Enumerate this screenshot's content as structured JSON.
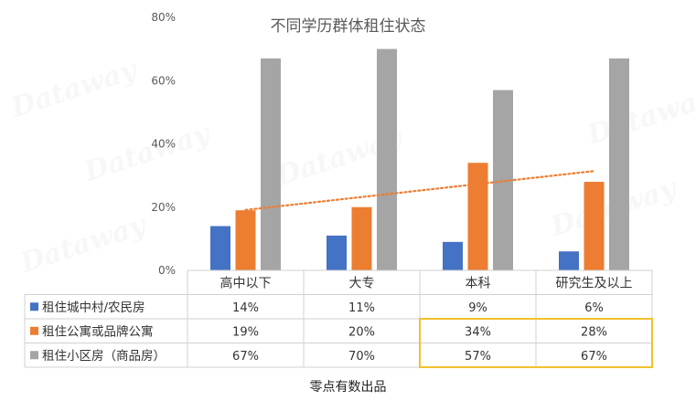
{
  "chart_data": {
    "type": "bar",
    "title": "不同学历群体租住状态",
    "categories": [
      "高中以下",
      "大专",
      "本科",
      "研究生及以上"
    ],
    "series": [
      {
        "name": "租住城中村/农民房",
        "values": [
          14,
          11,
          9,
          6
        ],
        "labels": [
          "14%",
          "11%",
          "9%",
          "6%"
        ],
        "color": "#4472c4"
      },
      {
        "name": "租住公寓或品牌公寓",
        "values": [
          19,
          20,
          34,
          28
        ],
        "labels": [
          "19%",
          "20%",
          "34%",
          "28%"
        ],
        "color": "#ed7d31"
      },
      {
        "name": "租住小区房（商品房）",
        "values": [
          67,
          70,
          57,
          67
        ],
        "labels": [
          "67%",
          "70%",
          "57%",
          "67%"
        ],
        "color": "#a5a5a5"
      }
    ],
    "ylim": [
      0,
      80
    ],
    "yticks": [
      "0%",
      "20%",
      "40%",
      "60%",
      "80%"
    ],
    "trendline": {
      "series": "租住公寓或品牌公寓",
      "style": "dotted",
      "color": "#ed7d31"
    },
    "data_table": true,
    "highlight": {
      "color": "#f2c12e",
      "rows": [
        "租住公寓或品牌公寓",
        "租住小区房（商品房）"
      ],
      "columns": [
        "本科",
        "研究生及以上"
      ]
    }
  },
  "footer": "零点有数出品",
  "watermark": "Dataway"
}
